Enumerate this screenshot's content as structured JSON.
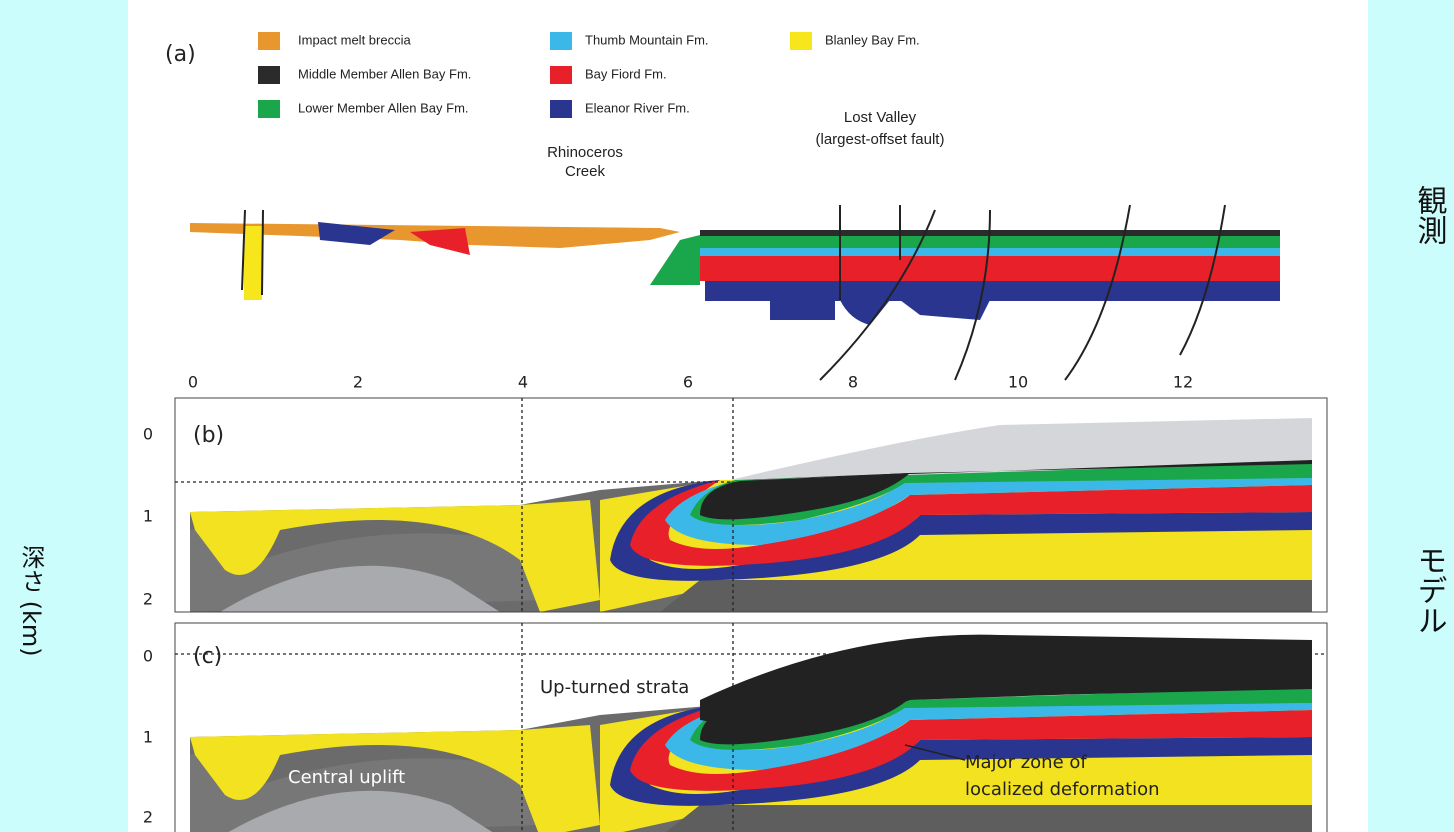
{
  "side_labels": {
    "observation": "観測",
    "model": "モデル",
    "depth": "深さ (km)"
  },
  "panel_a": {
    "label": "(a)",
    "legend": [
      "Impact melt breccia",
      "Middle Member Allen Bay Fm.",
      "Lower Member Allen Bay Fm.",
      "Thumb Mountain Fm.",
      "Bay Fiord Fm.",
      "Eleanor River Fm.",
      "Blanley Bay Fm."
    ],
    "rhinoceros_creek": [
      "Rhinoceros",
      "Creek"
    ],
    "lost_valley": [
      "Lost Valley",
      "(largest-offset fault)"
    ],
    "distance_ticks": [
      "0",
      "2",
      "4",
      "6",
      "8",
      "10",
      "12"
    ]
  },
  "panel_b": {
    "label": "(b)",
    "depth_ticks": [
      "0",
      "1",
      "2"
    ]
  },
  "panel_c": {
    "label": "(c)",
    "depth_ticks": [
      "0",
      "1",
      "2"
    ],
    "up_turned": "Up-turned strata",
    "central_uplift": "Central uplift",
    "major_zone": [
      "Major zone of",
      "localized deformation"
    ]
  }
}
